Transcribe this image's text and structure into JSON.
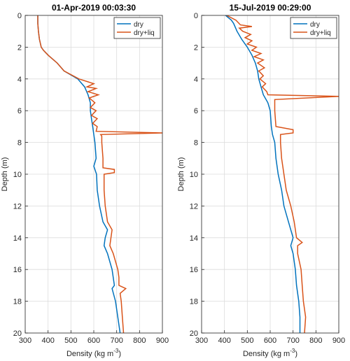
{
  "chart_data": [
    {
      "type": "line",
      "title": "01-Apr-2019 00:03:30",
      "xlabel": {
        "text": "Density (kg m",
        "sup": "-3",
        "tail": ")"
      },
      "ylabel": "Depth (m)",
      "xlim": [
        300,
        900
      ],
      "xticks": [
        300,
        400,
        500,
        600,
        700,
        800,
        900
      ],
      "ylim": [
        0,
        20
      ],
      "yticks": [
        0,
        2,
        4,
        6,
        8,
        10,
        12,
        14,
        16,
        18,
        20
      ],
      "y_reversed": true,
      "grid": true,
      "legend": "top-right",
      "series": [
        {
          "name": "dry",
          "color": "#0072bd",
          "depth": [
            0,
            0.5,
            1,
            1.5,
            2,
            2.2,
            2.5,
            3,
            3.5,
            4,
            4.5,
            5,
            5.5,
            6,
            6.5,
            7,
            7.5,
            8,
            9,
            9.5,
            10,
            11,
            12,
            13,
            13.5,
            14,
            14.5,
            15,
            16,
            17,
            17.2,
            18,
            19,
            20
          ],
          "values": [
            355,
            355,
            358,
            362,
            370,
            380,
            400,
            440,
            470,
            530,
            560,
            575,
            585,
            585,
            590,
            595,
            600,
            605,
            610,
            600,
            612,
            615,
            625,
            640,
            660,
            650,
            645,
            660,
            680,
            690,
            680,
            695,
            705,
            715
          ]
        },
        {
          "name": "dry+liq",
          "color": "#d95319",
          "depth": [
            0,
            0.5,
            1,
            1.5,
            2,
            2.2,
            2.5,
            3,
            3.5,
            4,
            4.3,
            4.5,
            4.6,
            4.8,
            5,
            5.2,
            5.5,
            5.8,
            6,
            6.3,
            6.5,
            6.8,
            7,
            7.3,
            7.4,
            7.5,
            7.6,
            8,
            9,
            9.6,
            9.7,
            9.9,
            10,
            11,
            12,
            13,
            13.5,
            14,
            14.5,
            15,
            16,
            16.5,
            17,
            17.2,
            17.5,
            18,
            19,
            20
          ],
          "values": [
            355,
            355,
            358,
            362,
            370,
            380,
            400,
            440,
            470,
            535,
            600,
            570,
            610,
            575,
            620,
            580,
            605,
            585,
            610,
            590,
            615,
            595,
            615,
            610,
            900,
            630,
            635,
            635,
            640,
            640,
            690,
            690,
            645,
            645,
            650,
            660,
            680,
            675,
            670,
            685,
            705,
            710,
            710,
            740,
            715,
            720,
            725,
            730
          ]
        }
      ]
    },
    {
      "type": "line",
      "title": "15-Jul-2019 00:29:00",
      "xlabel": {
        "text": "Density (kg m",
        "sup": "-3",
        "tail": ")"
      },
      "ylabel": "Depth (m)",
      "xlim": [
        300,
        900
      ],
      "xticks": [
        300,
        400,
        500,
        600,
        700,
        800,
        900
      ],
      "ylim": [
        0,
        20
      ],
      "yticks": [
        0,
        2,
        4,
        6,
        8,
        10,
        12,
        14,
        16,
        18,
        20
      ],
      "y_reversed": true,
      "grid": true,
      "legend": "top-right",
      "series": [
        {
          "name": "dry",
          "color": "#0072bd",
          "depth": [
            0,
            0.3,
            0.5,
            1,
            1.5,
            2,
            2.5,
            3,
            3.5,
            4,
            4.5,
            5,
            5.5,
            6,
            7,
            7.5,
            8,
            9,
            10,
            11,
            12,
            13,
            14,
            14.5,
            15,
            16,
            17,
            18,
            19,
            20
          ],
          "values": [
            405,
            430,
            440,
            455,
            475,
            500,
            520,
            535,
            545,
            550,
            560,
            570,
            590,
            600,
            605,
            610,
            620,
            625,
            635,
            650,
            660,
            680,
            700,
            690,
            700,
            710,
            715,
            725,
            730,
            730
          ]
        },
        {
          "name": "dry+liq",
          "color": "#d95319",
          "depth": [
            0,
            0.3,
            0.6,
            0.7,
            0.8,
            1,
            1.2,
            1.4,
            1.6,
            1.8,
            2,
            2.2,
            2.4,
            2.6,
            2.8,
            3,
            3.3,
            3.5,
            3.8,
            4,
            4.3,
            4.5,
            4.8,
            5,
            5.1,
            5.3,
            6,
            7,
            7.2,
            7.4,
            7.5,
            8,
            9,
            10,
            11,
            12,
            13,
            14,
            14.3,
            14.5,
            15,
            16,
            17,
            18,
            19,
            20
          ],
          "values": [
            410,
            450,
            470,
            520,
            465,
            480,
            515,
            490,
            520,
            500,
            540,
            520,
            560,
            530,
            570,
            545,
            575,
            550,
            570,
            555,
            580,
            565,
            585,
            590,
            900,
            620,
            620,
            625,
            700,
            700,
            645,
            645,
            650,
            660,
            670,
            690,
            705,
            715,
            740,
            720,
            720,
            735,
            740,
            745,
            755,
            750
          ]
        }
      ]
    }
  ]
}
